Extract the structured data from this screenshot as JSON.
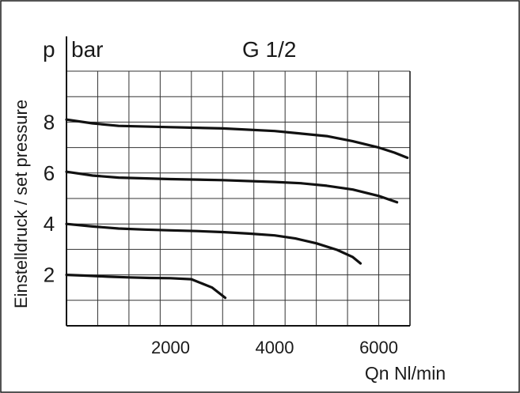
{
  "chart_data": {
    "type": "line",
    "title": "G 1/2",
    "xlabel": "Qn Nl/min",
    "ylabel": "Einstelldruck / set pressure",
    "y_symbol": "p",
    "y_unit": "bar",
    "xlim": [
      0,
      6600
    ],
    "ylim": [
      0,
      10
    ],
    "x_ticks": [
      2000,
      4000,
      6000
    ],
    "y_ticks": [
      2,
      4,
      6,
      8
    ],
    "x_grid_step": 600,
    "y_grid_step": 1,
    "grid": true,
    "legend": "none",
    "series": [
      {
        "x": [
          0,
          400,
          800,
          1200,
          1600,
          2000,
          2400,
          2800,
          3050
        ],
        "y": [
          2.0,
          1.97,
          1.93,
          1.9,
          1.88,
          1.87,
          1.83,
          1.5,
          1.1
        ]
      },
      {
        "x": [
          0,
          500,
          1000,
          1500,
          2000,
          2500,
          3000,
          3500,
          4000,
          4400,
          4800,
          5200,
          5500,
          5650
        ],
        "y": [
          4.0,
          3.9,
          3.82,
          3.78,
          3.75,
          3.72,
          3.68,
          3.62,
          3.55,
          3.43,
          3.24,
          2.98,
          2.7,
          2.45
        ]
      },
      {
        "x": [
          0,
          500,
          1000,
          2000,
          3000,
          4000,
          4500,
          5000,
          5500,
          6000,
          6350
        ],
        "y": [
          6.05,
          5.9,
          5.82,
          5.76,
          5.72,
          5.65,
          5.6,
          5.5,
          5.35,
          5.1,
          4.85
        ]
      },
      {
        "x": [
          0,
          500,
          1000,
          2000,
          3000,
          4000,
          4500,
          5000,
          5500,
          6000,
          6300,
          6550
        ],
        "y": [
          8.1,
          7.95,
          7.85,
          7.8,
          7.75,
          7.65,
          7.55,
          7.45,
          7.25,
          7.0,
          6.8,
          6.6
        ]
      }
    ]
  }
}
